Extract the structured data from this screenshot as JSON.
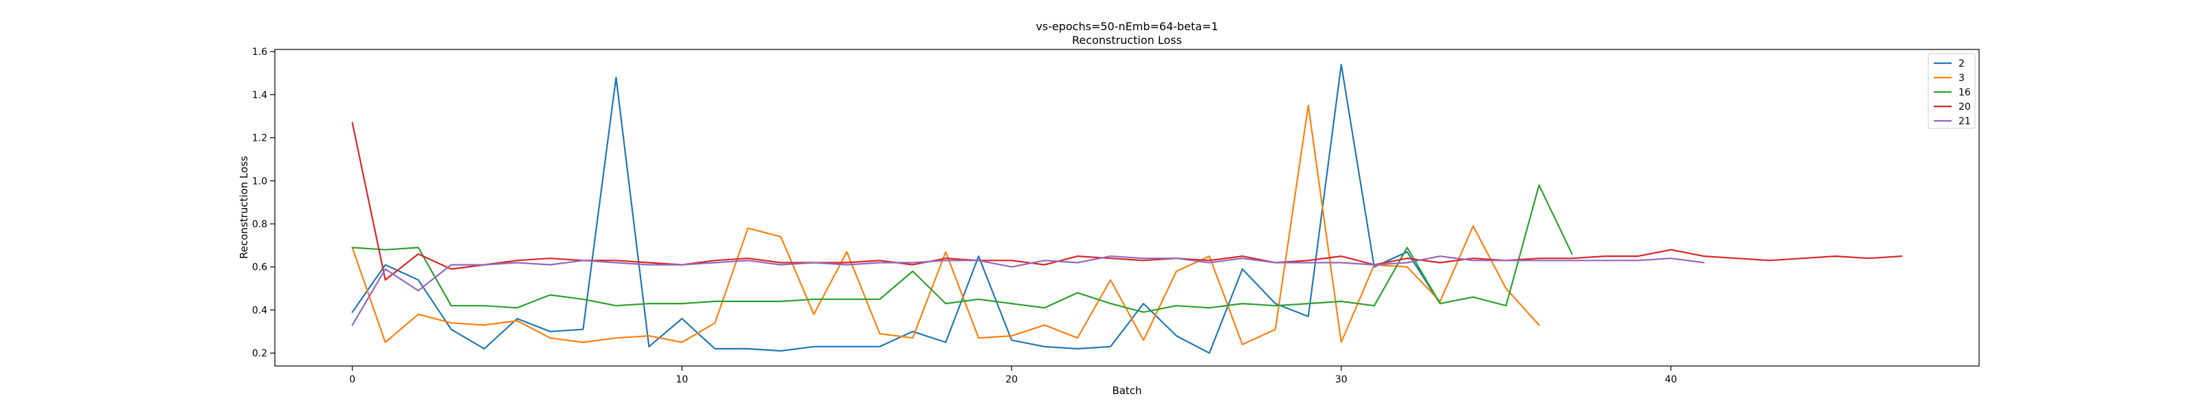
{
  "chart_data": {
    "type": "line",
    "title_lines": [
      "vs-epochs=50-nEmb=64-beta=1",
      "Reconstruction Loss"
    ],
    "xlabel": "Batch",
    "ylabel": "Reconstruction Loss",
    "xlim": [
      -2.35,
      49.35
    ],
    "ylim": [
      0.14,
      1.61
    ],
    "xticks": [
      0,
      10,
      20,
      30,
      40
    ],
    "xtick_labels": [
      "0",
      "10",
      "20",
      "30",
      "40"
    ],
    "yticks": [
      0.2,
      0.4,
      0.6,
      0.8,
      1.0,
      1.2,
      1.4,
      1.6
    ],
    "ytick_labels": [
      "0.2",
      "0.4",
      "0.6",
      "0.8",
      "1.0",
      "1.2",
      "1.4",
      "1.6"
    ],
    "grid": false,
    "legend_position": "top-right",
    "series": [
      {
        "name": "2",
        "color": "#1f77b4",
        "values": [
          0.39,
          0.61,
          0.54,
          0.31,
          0.22,
          0.36,
          0.3,
          0.31,
          1.48,
          0.23,
          0.36,
          0.22,
          0.22,
          0.21,
          0.23,
          0.23,
          0.23,
          0.3,
          0.25,
          0.65,
          0.26,
          0.23,
          0.22,
          0.23,
          0.43,
          0.28,
          0.2,
          0.59,
          0.43,
          0.37,
          1.54,
          0.6,
          0.67,
          0.43
        ]
      },
      {
        "name": "3",
        "color": "#ff7f0e",
        "values": [
          0.69,
          0.25,
          0.38,
          0.34,
          0.33,
          0.35,
          0.27,
          0.25,
          0.27,
          0.28,
          0.25,
          0.34,
          0.78,
          0.74,
          0.38,
          0.67,
          0.29,
          0.27,
          0.67,
          0.27,
          0.28,
          0.33,
          0.27,
          0.54,
          0.26,
          0.58,
          0.65,
          0.24,
          0.31,
          1.35,
          0.25,
          0.61,
          0.6,
          0.44,
          0.79,
          0.5,
          0.33
        ]
      },
      {
        "name": "16",
        "color": "#2ca02c",
        "values": [
          0.69,
          0.68,
          0.69,
          0.42,
          0.42,
          0.41,
          0.47,
          0.45,
          0.42,
          0.43,
          0.43,
          0.44,
          0.44,
          0.44,
          0.45,
          0.45,
          0.45,
          0.58,
          0.43,
          0.45,
          0.43,
          0.41,
          0.48,
          0.43,
          0.39,
          0.42,
          0.41,
          0.43,
          0.42,
          0.43,
          0.44,
          0.42,
          0.69,
          0.43,
          0.46,
          0.42,
          0.98,
          0.66
        ]
      },
      {
        "name": "20",
        "color": "#d62728",
        "values": [
          1.27,
          0.54,
          0.66,
          0.59,
          0.61,
          0.63,
          0.64,
          0.63,
          0.63,
          0.62,
          0.61,
          0.63,
          0.64,
          0.62,
          0.62,
          0.62,
          0.63,
          0.61,
          0.64,
          0.63,
          0.63,
          0.61,
          0.65,
          0.64,
          0.63,
          0.64,
          0.63,
          0.65,
          0.62,
          0.63,
          0.65,
          0.61,
          0.64,
          0.62,
          0.64,
          0.63,
          0.64,
          0.64,
          0.65,
          0.65,
          0.68,
          0.65,
          0.64,
          0.63,
          0.64,
          0.65,
          0.64,
          0.65
        ]
      },
      {
        "name": "21",
        "color": "#9467bd",
        "values": [
          0.33,
          0.59,
          0.49,
          0.61,
          0.61,
          0.62,
          0.61,
          0.63,
          0.62,
          0.61,
          0.61,
          0.62,
          0.63,
          0.61,
          0.62,
          0.61,
          0.62,
          0.62,
          0.63,
          0.63,
          0.6,
          0.63,
          0.62,
          0.65,
          0.64,
          0.64,
          0.62,
          0.64,
          0.62,
          0.62,
          0.62,
          0.61,
          0.62,
          0.65,
          0.63,
          0.63,
          0.63,
          0.63,
          0.63,
          0.63,
          0.64,
          0.62
        ]
      }
    ]
  }
}
